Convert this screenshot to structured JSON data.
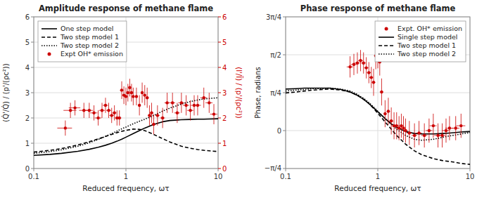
{
  "chart_data": [
    {
      "type": "line",
      "title": "Amplitude response of methane flame",
      "x_label": "Reduced frequency, ωτ",
      "y_label": "(Q̇'/Q̇) / (p'/(ρc²))",
      "y2_label": "(I'/Ī) / (p'/(ρc²))",
      "log": "x",
      "xlim": [
        0.1,
        10.0
      ],
      "xticks": [
        0.1,
        1,
        10
      ],
      "ylim": [
        0,
        6
      ],
      "yticks": [
        0,
        1,
        2,
        3,
        4,
        5,
        6
      ],
      "y2lim": [
        0,
        6
      ],
      "y2ticks": [
        0,
        1,
        2,
        3,
        4,
        5,
        6
      ],
      "grid": true,
      "legend": "upper left",
      "series": [
        {
          "name": "One step model",
          "type": "line",
          "color": "#000000",
          "line_style": "solid",
          "x": [
            0.1,
            0.15,
            0.2,
            0.3,
            0.4,
            0.5,
            0.6,
            0.7,
            0.8,
            0.9,
            1.0,
            1.2,
            1.4,
            1.6,
            2.0,
            2.5,
            3.0,
            4.0,
            5.0,
            6.0,
            7.0,
            8.0,
            10.0
          ],
          "values": [
            0.52,
            0.56,
            0.6,
            0.68,
            0.76,
            0.84,
            0.92,
            1.0,
            1.08,
            1.16,
            1.24,
            1.38,
            1.5,
            1.6,
            1.74,
            1.85,
            1.9,
            1.93,
            1.94,
            1.95,
            1.95,
            1.96,
            1.97
          ]
        },
        {
          "name": "Two step model 1",
          "type": "line",
          "color": "#000000",
          "line_style": "dashed",
          "x": [
            0.1,
            0.15,
            0.2,
            0.3,
            0.4,
            0.5,
            0.6,
            0.7,
            0.8,
            0.9,
            1.0,
            1.2,
            1.4,
            1.6,
            2.0,
            2.5,
            3.0,
            4.0,
            5.0,
            6.0,
            7.0,
            8.0,
            10.0
          ],
          "values": [
            0.65,
            0.72,
            0.79,
            0.93,
            1.06,
            1.17,
            1.27,
            1.35,
            1.42,
            1.47,
            1.51,
            1.56,
            1.55,
            1.5,
            1.35,
            1.18,
            1.05,
            0.88,
            0.8,
            0.75,
            0.72,
            0.7,
            0.67
          ]
        },
        {
          "name": "Two step model 2",
          "type": "line",
          "color": "#000000",
          "line_style": "dotted",
          "x": [
            0.1,
            0.15,
            0.2,
            0.3,
            0.4,
            0.5,
            0.6,
            0.7,
            0.8,
            0.9,
            1.0,
            1.2,
            1.4,
            1.6,
            2.0,
            2.5,
            3.0,
            4.0,
            5.0,
            6.0,
            7.0,
            8.0,
            10.0
          ],
          "values": [
            0.6,
            0.67,
            0.74,
            0.88,
            1.02,
            1.15,
            1.27,
            1.38,
            1.48,
            1.57,
            1.64,
            1.77,
            1.87,
            1.95,
            2.1,
            2.27,
            2.39,
            2.55,
            2.65,
            2.71,
            2.75,
            2.77,
            2.8
          ]
        },
        {
          "name": "Expt OH* emission",
          "type": "scatter",
          "color": "#cc0000",
          "marker": "circle",
          "axis": "y2",
          "x": [
            0.22,
            0.25,
            0.28,
            0.35,
            0.4,
            0.45,
            0.5,
            0.55,
            0.6,
            0.65,
            0.7,
            0.75,
            0.8,
            0.85,
            0.9,
            0.95,
            1.0,
            1.05,
            1.1,
            1.15,
            1.2,
            1.3,
            1.4,
            1.5,
            1.6,
            1.7,
            1.8,
            1.9,
            2.0,
            2.2,
            2.5,
            2.8,
            3.2,
            3.6,
            4.0,
            4.5,
            5.0,
            5.5,
            6.0,
            7.0,
            8.0,
            9.0
          ],
          "values": [
            1.6,
            2.3,
            2.4,
            2.3,
            2.3,
            2.2,
            2.0,
            2.3,
            2.5,
            2.3,
            2.1,
            2.2,
            2.0,
            2.0,
            3.1,
            2.9,
            2.85,
            3.0,
            3.2,
            3.0,
            2.85,
            2.85,
            2.5,
            3.0,
            2.9,
            2.8,
            2.1,
            2.2,
            1.75,
            2.1,
            2.0,
            2.6,
            2.6,
            2.2,
            2.6,
            2.5,
            2.3,
            2.5,
            2.5,
            2.8,
            2.6,
            2.15
          ],
          "xerr": [
            0.04,
            0.04,
            0.04,
            0.04,
            0.04,
            0.04,
            0.04,
            0.04,
            0.04,
            0.04,
            0.04,
            0.04,
            0.04,
            0.04,
            0.04,
            0.04,
            0.04,
            0.04,
            0.04,
            0.04,
            0.04,
            0.04,
            0.05,
            0.05,
            0.06,
            0.07,
            0.07,
            0.08,
            0.1,
            0.12,
            0.15,
            0.18,
            0.22,
            0.25,
            0.3,
            0.35,
            0.4,
            0.45,
            0.5,
            0.6,
            0.7,
            0.8
          ],
          "yerr": [
            0.3,
            0.3,
            0.3,
            0.3,
            0.3,
            0.3,
            0.3,
            0.3,
            0.3,
            0.3,
            0.3,
            0.3,
            0.3,
            0.3,
            0.35,
            0.35,
            0.35,
            0.35,
            0.35,
            0.35,
            0.35,
            0.35,
            0.4,
            0.4,
            0.4,
            0.4,
            0.4,
            0.4,
            0.4,
            0.4,
            0.4,
            0.4,
            0.4,
            0.4,
            0.4,
            0.4,
            0.4,
            0.4,
            0.4,
            0.4,
            0.4,
            0.4
          ]
        }
      ]
    },
    {
      "type": "line",
      "title": "Phase response of methane flame",
      "x_label": "Reduced frequency, ωτ",
      "y_label": "Phase, radians",
      "log": "x",
      "xlim": [
        0.1,
        10.0
      ],
      "xticks": [
        0.1,
        1,
        10
      ],
      "ylim": [
        -0.7854,
        2.3562
      ],
      "yticks": [
        {
          "value": -0.7853981633974483,
          "label": "−π/4"
        },
        0,
        {
          "value": 0.7853981633974483,
          "label": "π/4"
        },
        {
          "value": 1.5707963267948966,
          "label": "π/2"
        },
        {
          "value": 2.356194490192345,
          "label": "3π/4"
        }
      ],
      "grid": true,
      "legend": "upper right",
      "series": [
        {
          "name": "Expt. OH* emission",
          "type": "scatter",
          "color": "#cc0000",
          "marker": "circle",
          "x": [
            0.5,
            0.55,
            0.6,
            0.65,
            0.7,
            0.75,
            0.8,
            0.85,
            0.9,
            0.95,
            1.0,
            1.05,
            1.1,
            1.2,
            1.3,
            1.4,
            1.5,
            1.6,
            1.7,
            1.8,
            1.9,
            2.0,
            2.2,
            2.5,
            2.8,
            3.2,
            3.6,
            4.0,
            4.5,
            5.0,
            5.5,
            6.0,
            7.0,
            8.0
          ],
          "values": [
            1.32,
            1.37,
            1.4,
            1.45,
            1.4,
            1.3,
            1.2,
            1.1,
            1.0,
            1.55,
            1.57,
            1.42,
            0.8,
            0.35,
            0.4,
            0.2,
            0.1,
            0.1,
            0.05,
            0.1,
            0.05,
            0.0,
            -0.05,
            -0.1,
            -0.05,
            -0.1,
            0.0,
            0.1,
            -0.1,
            -0.1,
            0.0,
            0.05,
            0.05,
            0.1
          ],
          "xerr": [
            0.04,
            0.04,
            0.04,
            0.04,
            0.04,
            0.04,
            0.04,
            0.04,
            0.04,
            0.04,
            0.04,
            0.04,
            0.05,
            0.05,
            0.06,
            0.07,
            0.08,
            0.09,
            0.1,
            0.1,
            0.1,
            0.12,
            0.14,
            0.18,
            0.2,
            0.25,
            0.3,
            0.35,
            0.4,
            0.45,
            0.5,
            0.6,
            0.7,
            0.9
          ],
          "yerr": [
            0.22,
            0.22,
            0.22,
            0.22,
            0.22,
            0.22,
            0.22,
            0.22,
            0.28,
            0.28,
            0.28,
            0.28,
            0.28,
            0.28,
            0.28,
            0.28,
            0.28,
            0.28,
            0.25,
            0.25,
            0.25,
            0.25,
            0.25,
            0.25,
            0.25,
            0.25,
            0.25,
            0.25,
            0.25,
            0.25,
            0.25,
            0.25,
            0.25,
            0.25
          ]
        },
        {
          "name": "Single step model",
          "type": "line",
          "color": "#000000",
          "line_style": "solid",
          "x": [
            0.1,
            0.13,
            0.16,
            0.2,
            0.25,
            0.3,
            0.4,
            0.5,
            0.6,
            0.7,
            0.8,
            0.9,
            1.0,
            1.2,
            1.4,
            1.6,
            2.0,
            2.5,
            3.0,
            4.0,
            5.0,
            6.0,
            7.0,
            8.0,
            10.0
          ],
          "values": [
            0.86,
            0.87,
            0.88,
            0.88,
            0.88,
            0.88,
            0.85,
            0.8,
            0.73,
            0.65,
            0.56,
            0.47,
            0.39,
            0.25,
            0.14,
            0.07,
            -0.02,
            -0.06,
            -0.07,
            -0.07,
            -0.06,
            -0.05,
            -0.04,
            -0.03,
            -0.02
          ]
        },
        {
          "name": "Two step model 1",
          "type": "line",
          "color": "#000000",
          "line_style": "dashed",
          "x": [
            0.1,
            0.13,
            0.16,
            0.2,
            0.25,
            0.3,
            0.4,
            0.5,
            0.6,
            0.7,
            0.8,
            0.9,
            1.0,
            1.2,
            1.4,
            1.6,
            2.0,
            2.5,
            3.0,
            4.0,
            5.0,
            6.0,
            7.0,
            8.0,
            10.0
          ],
          "values": [
            0.78,
            0.8,
            0.82,
            0.84,
            0.85,
            0.86,
            0.84,
            0.8,
            0.73,
            0.65,
            0.56,
            0.46,
            0.36,
            0.18,
            0.03,
            -0.1,
            -0.28,
            -0.42,
            -0.5,
            -0.58,
            -0.62,
            -0.64,
            -0.66,
            -0.68,
            -0.7
          ]
        },
        {
          "name": "Two step model 2",
          "type": "line",
          "color": "#000000",
          "line_style": "dotted",
          "x": [
            0.1,
            0.13,
            0.16,
            0.2,
            0.25,
            0.3,
            0.4,
            0.5,
            0.6,
            0.7,
            0.8,
            0.9,
            1.0,
            1.2,
            1.4,
            1.6,
            2.0,
            2.5,
            3.0,
            4.0,
            5.0,
            6.0,
            7.0,
            8.0,
            10.0
          ],
          "values": [
            0.82,
            0.84,
            0.85,
            0.87,
            0.87,
            0.88,
            0.86,
            0.82,
            0.75,
            0.67,
            0.58,
            0.49,
            0.4,
            0.25,
            0.13,
            0.03,
            -0.1,
            -0.18,
            -0.2,
            -0.18,
            -0.14,
            -0.11,
            -0.09,
            -0.07,
            -0.04
          ]
        }
      ]
    }
  ]
}
